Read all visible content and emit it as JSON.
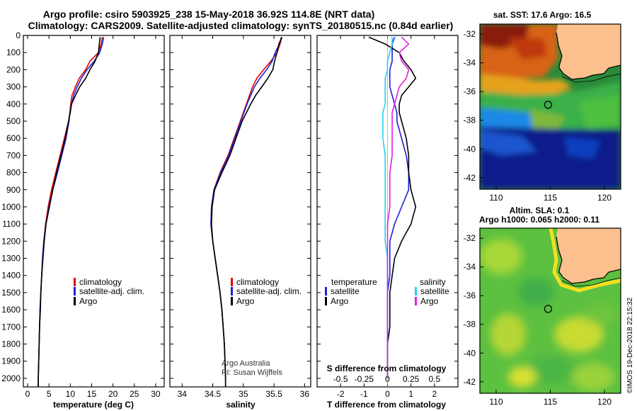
{
  "header": {
    "title_line1": "Argo profile: csiro 5903925_238 15-May-2018 36.92S 114.8E (NRT data)",
    "title_line2": "Climatology: CARS2009. Satellite-adjusted climatology: synTS_20180515.nc (0.84d earlier)"
  },
  "colors": {
    "climatology": "#e00000",
    "satellite": "#1f1fd6",
    "argo": "#000000",
    "salinity_satellite": "#22d3ee",
    "salinity_argo": "#e020e0"
  },
  "chart_data": [
    {
      "type": "line",
      "name": "temperature-panel",
      "xlabel": "temperature (deg C)",
      "xlim": [
        -1,
        32
      ],
      "ylim": [
        2050,
        0
      ],
      "xticks": [
        0,
        5,
        10,
        15,
        20,
        25,
        30
      ],
      "yticks": [
        0,
        100,
        200,
        300,
        400,
        500,
        600,
        700,
        800,
        900,
        1000,
        1100,
        1200,
        1300,
        1400,
        1500,
        1600,
        1700,
        1800,
        1900,
        2000
      ],
      "depth": [
        10,
        50,
        100,
        150,
        200,
        250,
        300,
        350,
        400,
        450,
        500,
        600,
        700,
        800,
        900,
        1000,
        1100,
        1200,
        1300,
        1400,
        1500,
        1600,
        1700,
        1800,
        1900,
        2000,
        2050
      ],
      "legend": [
        "climatology",
        "satellite-adj. clim.",
        "Argo"
      ],
      "series": [
        {
          "name": "climatology",
          "color_key": "climatology",
          "values": [
            17.5,
            17.2,
            16.6,
            14.6,
            13.6,
            12.1,
            11.2,
            10.4,
            10.1,
            9.9,
            9.6,
            8.6,
            7.6,
            6.6,
            5.6,
            4.8,
            4.2,
            3.8,
            3.5,
            3.3,
            3.1,
            2.9,
            2.8,
            2.7,
            2.6,
            2.5,
            2.5
          ]
        },
        {
          "name": "satellite-adj. clim.",
          "color_key": "satellite",
          "values": [
            17.8,
            17.5,
            16.9,
            15.6,
            13.9,
            12.6,
            11.6,
            10.8,
            10.3,
            9.9,
            9.7,
            9.0,
            8.0,
            7.0,
            5.9,
            5.0,
            4.3,
            3.8,
            3.5,
            3.3,
            3.1,
            2.9,
            2.8,
            2.7,
            2.6,
            2.5,
            2.5
          ]
        },
        {
          "name": "Argo",
          "color_key": "argo",
          "values": [
            17.0,
            16.8,
            16.6,
            15.8,
            14.6,
            13.6,
            12.2,
            11.2,
            10.3,
            10.0,
            9.6,
            8.8,
            7.8,
            6.8,
            5.9,
            5.1,
            4.3,
            3.9,
            3.6,
            3.3,
            3.1,
            3.0,
            2.8,
            2.7,
            2.6,
            2.5,
            2.5
          ]
        }
      ]
    },
    {
      "type": "line",
      "name": "salinity-panel",
      "xlabel": "salinity",
      "xlim": [
        33.8,
        36.1
      ],
      "ylim": [
        2050,
        0
      ],
      "xticks": [
        34,
        34.5,
        35,
        35.5,
        36
      ],
      "depth": [
        10,
        50,
        100,
        150,
        200,
        250,
        300,
        350,
        400,
        450,
        500,
        600,
        700,
        800,
        900,
        1000,
        1100,
        1200,
        1300,
        1400,
        1500,
        1600,
        1700,
        1800,
        1900,
        2000,
        2050
      ],
      "legend": [
        "climatology",
        "satellite-adj. clim.",
        "Argo"
      ],
      "series": [
        {
          "name": "climatology",
          "color_key": "climatology",
          "values": [
            35.63,
            35.6,
            35.55,
            35.45,
            35.33,
            35.22,
            35.15,
            35.1,
            35.05,
            35.0,
            34.95,
            34.85,
            34.75,
            34.62,
            34.52,
            34.48,
            34.47,
            34.5,
            34.54,
            34.58,
            34.62,
            34.65,
            34.67,
            34.69,
            34.7,
            34.71,
            34.71
          ]
        },
        {
          "name": "satellite-adj. clim.",
          "color_key": "satellite",
          "values": [
            35.62,
            35.59,
            35.52,
            35.47,
            35.38,
            35.27,
            35.18,
            35.12,
            35.06,
            35.01,
            34.96,
            34.86,
            34.76,
            34.63,
            34.52,
            34.48,
            34.47,
            34.5,
            34.54,
            34.58,
            34.62,
            34.65,
            34.67,
            34.69,
            34.7,
            34.71,
            34.71
          ]
        },
        {
          "name": "Argo",
          "color_key": "argo",
          "values": [
            35.63,
            35.58,
            35.55,
            35.51,
            35.48,
            35.4,
            35.3,
            35.2,
            35.12,
            35.05,
            34.98,
            34.88,
            34.78,
            34.65,
            34.53,
            34.49,
            34.48,
            34.5,
            34.54,
            34.58,
            34.62,
            34.65,
            34.67,
            34.69,
            34.7,
            34.71,
            34.71
          ]
        }
      ],
      "annotation_line1": "Argo Australia",
      "annotation_line2": "PI: Susan Wijffels"
    },
    {
      "type": "line",
      "name": "difference-panel",
      "xlabel": "T difference from climatology",
      "xlabel_top": "S difference from climatology",
      "xlim": [
        -3,
        3
      ],
      "ylim": [
        2050,
        0
      ],
      "xticks": [
        -2,
        -1,
        0,
        1,
        2
      ],
      "xtick_labels_top": [
        "-0.5",
        "-0.25",
        "0",
        "0.25",
        "0.5"
      ],
      "xticks_top_positions": [
        -2,
        -1,
        0,
        1,
        2
      ],
      "depth": [
        10,
        50,
        100,
        150,
        200,
        250,
        300,
        350,
        400,
        450,
        500,
        600,
        700,
        800,
        900,
        1000,
        1100,
        1200,
        1300,
        1400,
        1500,
        1600,
        1700,
        1800,
        1900,
        2000
      ],
      "legend_left_title": "temperature",
      "legend_right_title": "salinity",
      "legend_left": [
        "satellite",
        "Argo"
      ],
      "legend_right": [
        "satellite",
        "Argo"
      ],
      "series": [
        {
          "name": "temperature satellite",
          "color_key": "satellite",
          "values": [
            0.3,
            0.2,
            0.2,
            0.2,
            0.1,
            0.1,
            0.1,
            0.2,
            0.3,
            0.4,
            0.4,
            0.6,
            0.8,
            0.9,
            0.9,
            0.6,
            0.3,
            0.1,
            0.1,
            0.1,
            0.0,
            0.0,
            0.0,
            0.0,
            0.0,
            0.0
          ]
        },
        {
          "name": "temperature Argo",
          "color_key": "argo",
          "values": [
            -0.8,
            -0.1,
            0.5,
            0.7,
            1.0,
            1.2,
            0.9,
            0.6,
            0.5,
            0.5,
            0.6,
            0.8,
            0.9,
            0.9,
            1.0,
            1.2,
            1.0,
            0.6,
            0.3,
            0.2,
            0.1,
            0.1,
            0.1,
            0.0,
            0.0,
            0.0
          ]
        },
        {
          "name": "salinity satellite",
          "color_key": "salinity_satellite",
          "values": [
            0.2,
            0.2,
            0.1,
            0.0,
            0.0,
            -0.1,
            -0.1,
            -0.1,
            -0.1,
            -0.2,
            -0.2,
            -0.2,
            -0.1,
            -0.1,
            -0.1,
            -0.1,
            -0.1,
            -0.1,
            0.0,
            0.0,
            0.0,
            0.0,
            0.0,
            0.0,
            0.0,
            0.0
          ]
        },
        {
          "name": "salinity Argo",
          "color_key": "salinity_argo",
          "values": [
            0.6,
            0.9,
            0.5,
            0.6,
            0.9,
            0.8,
            0.5,
            0.4,
            0.3,
            0.2,
            0.2,
            0.2,
            0.2,
            0.1,
            0.1,
            0.1,
            0.0,
            0.0,
            0.0,
            0.0,
            0.0,
            0.0,
            0.0,
            0.0,
            0.0,
            0.0
          ]
        }
      ]
    },
    {
      "type": "heatmap",
      "name": "sst-map",
      "title": "sat. SST: 17.6 Argo: 16.5",
      "xlim": [
        108.5,
        121.5
      ],
      "ylim": [
        -42.8,
        -31.3
      ],
      "xticks": [
        110,
        115,
        120
      ],
      "yticks": [
        -32,
        -34,
        -36,
        -38,
        -40,
        -42
      ],
      "marker": {
        "lon": 114.8,
        "lat": -36.92
      }
    },
    {
      "type": "heatmap",
      "name": "sla-map",
      "title_line1": "Altim. SLA: 0.1",
      "title_line2": "Argo h1000: 0.065 h2000: 0.11",
      "xlim": [
        108.5,
        121.5
      ],
      "ylim": [
        -42.8,
        -31.3
      ],
      "xticks": [
        110,
        115,
        120
      ],
      "yticks": [
        -32,
        -34,
        -36,
        -38,
        -40,
        -42
      ],
      "marker": {
        "lon": 114.8,
        "lat": -36.92
      }
    }
  ],
  "credit": "©IMOS 19-Dec-2018 22:15:32"
}
